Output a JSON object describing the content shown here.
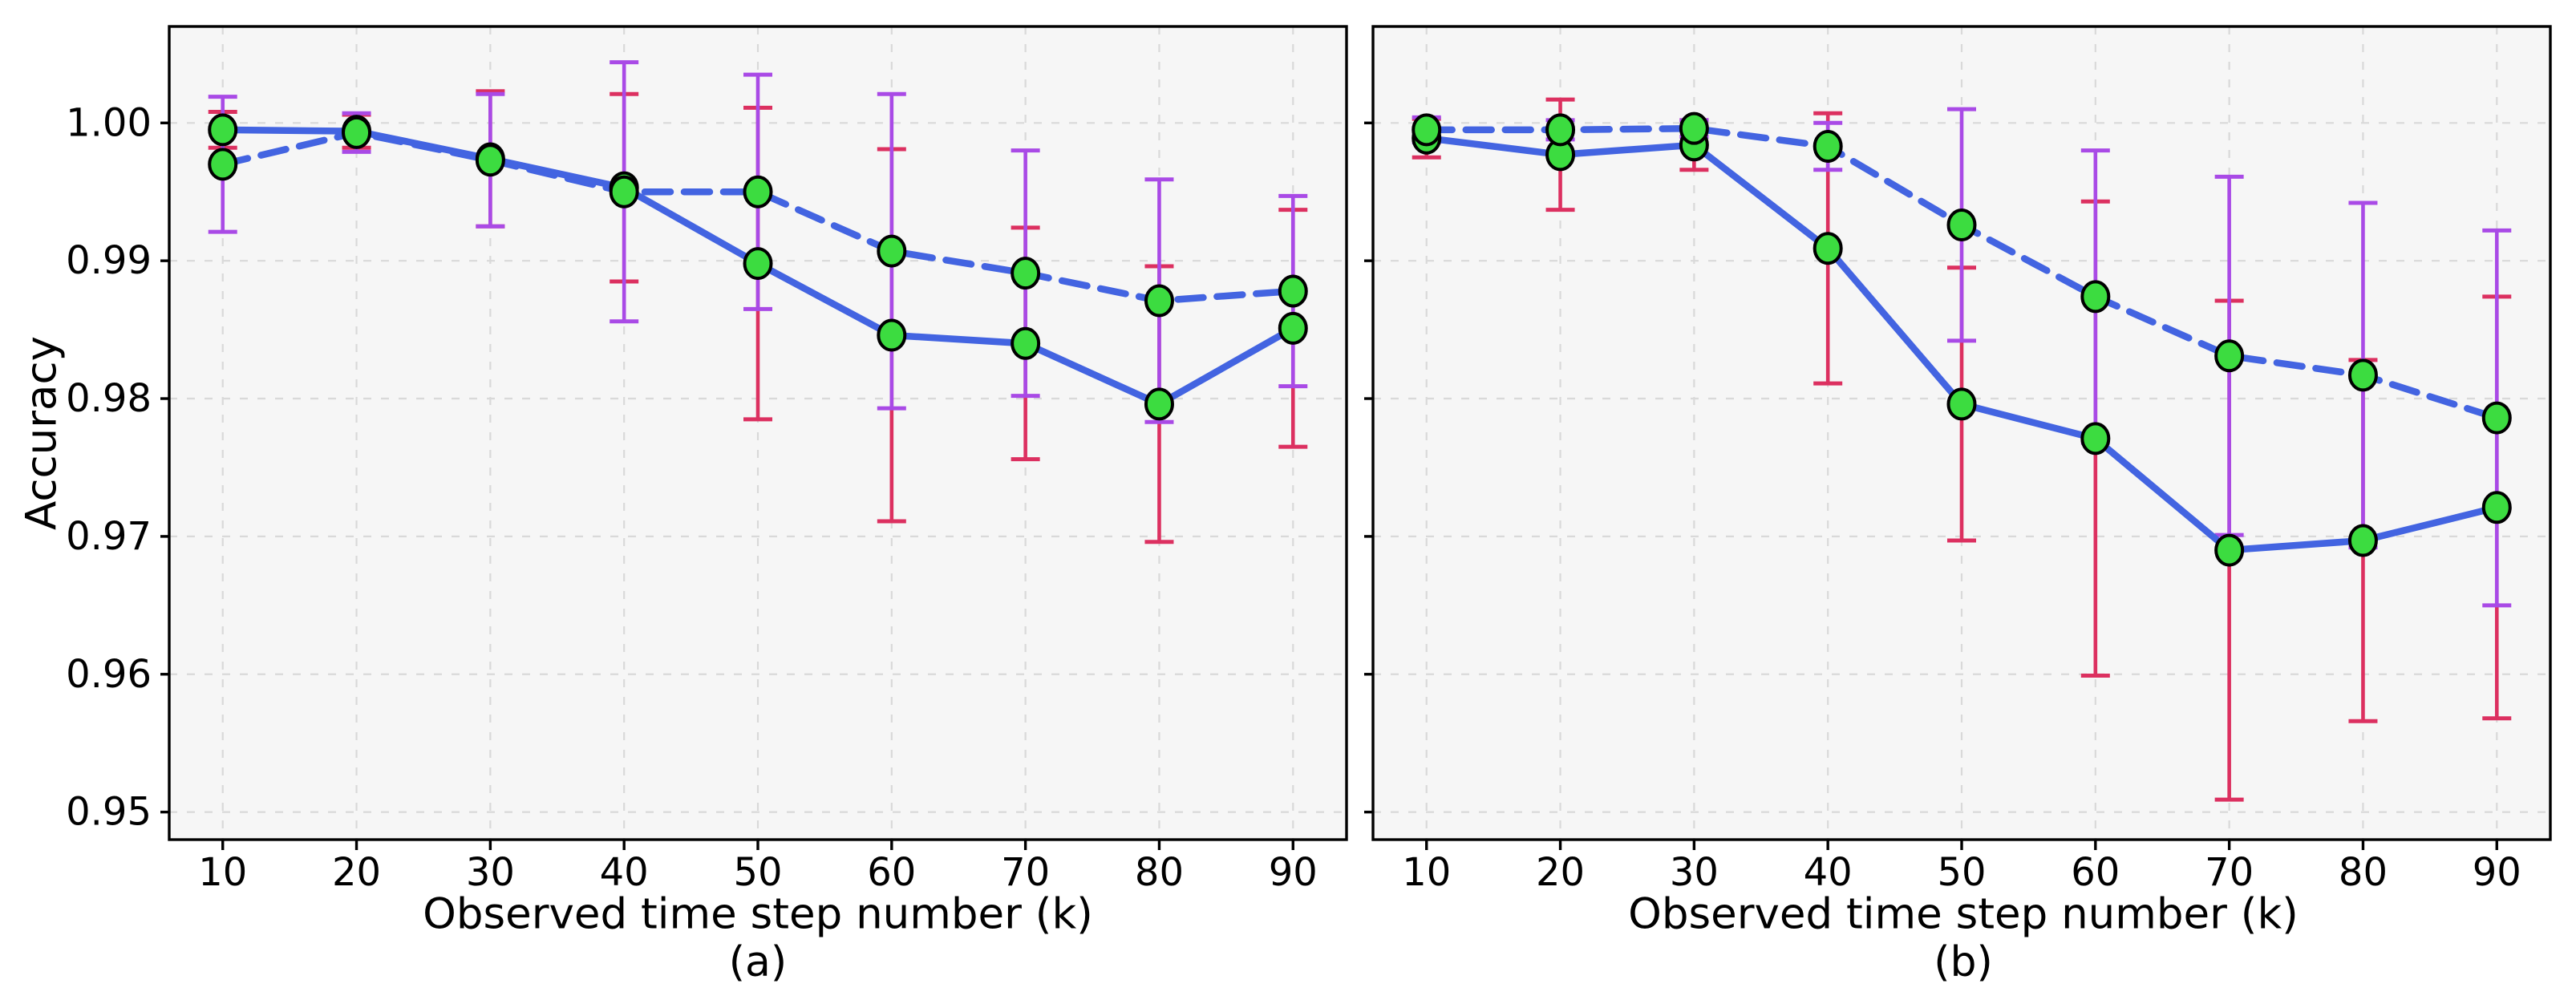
{
  "figure": {
    "background": "#ffffff",
    "axes_background": "#f6f6f6",
    "grid_color": "#d9d9d9",
    "spine_color": "#000000",
    "tick_label_color": "#000000",
    "line_color": "#4364e1",
    "marker_fill": "#3cdc40",
    "marker_edge": "#000000",
    "errorbar_colors": {
      "solid_series": "#dc3060",
      "dashed_series": "#a94ae6"
    },
    "ylabel": "Accuracy"
  },
  "chart_data": [
    {
      "type": "line",
      "panel_label": "(a)",
      "xlabel": "Observed time step number (k)",
      "ylabel": "Accuracy",
      "grid": true,
      "error_bars": true,
      "legend": "none",
      "xlim": [
        6,
        94
      ],
      "ylim": [
        0.948,
        1.007
      ],
      "x": [
        10,
        20,
        30,
        40,
        50,
        60,
        70,
        80,
        90
      ],
      "xtick_labels": [
        "10",
        "20",
        "30",
        "40",
        "50",
        "60",
        "70",
        "80",
        "90"
      ],
      "yticks": [
        0.95,
        0.96,
        0.97,
        0.98,
        0.99,
        1.0
      ],
      "ytick_labels": [
        "0.95",
        "0.96",
        "0.97",
        "0.98",
        "0.99",
        "1.00"
      ],
      "show_ytick_labels": true,
      "series": [
        {
          "name": "solid-line",
          "line_style": "solid",
          "marker": "circle",
          "err_color_key": "solid_series",
          "values": [
            0.9995,
            0.9994,
            0.9974,
            0.9953,
            0.9898,
            0.9846,
            0.984,
            0.9796,
            0.9851
          ],
          "yerr": [
            0.0013,
            0.0012,
            0.0049,
            0.0068,
            0.0113,
            0.0135,
            0.0084,
            0.01,
            0.0086
          ]
        },
        {
          "name": "dashed-line",
          "line_style": "dashed",
          "marker": "circle",
          "err_color_key": "dashed_series",
          "values": [
            0.997,
            0.9993,
            0.9973,
            0.995,
            0.995,
            0.9907,
            0.9891,
            0.9871,
            0.9878
          ],
          "yerr": [
            0.0049,
            0.0014,
            0.0048,
            0.0094,
            0.0085,
            0.0114,
            0.0089,
            0.0088,
            0.0069
          ]
        }
      ]
    },
    {
      "type": "line",
      "panel_label": "(b)",
      "xlabel": "Observed time step number (k)",
      "ylabel": "Accuracy",
      "grid": true,
      "error_bars": true,
      "legend": "none",
      "xlim": [
        6,
        94
      ],
      "ylim": [
        0.948,
        1.007
      ],
      "x": [
        10,
        20,
        30,
        40,
        50,
        60,
        70,
        80,
        90
      ],
      "xtick_labels": [
        "10",
        "20",
        "30",
        "40",
        "50",
        "60",
        "70",
        "80",
        "90"
      ],
      "yticks": [
        0.95,
        0.96,
        0.97,
        0.98,
        0.99,
        1.0
      ],
      "ytick_labels": [
        "0.95",
        "0.96",
        "0.97",
        "0.98",
        "0.99",
        "1.00"
      ],
      "show_ytick_labels": false,
      "series": [
        {
          "name": "solid-line",
          "line_style": "solid",
          "marker": "circle",
          "err_color_key": "solid_series",
          "values": [
            0.9989,
            0.9977,
            0.9984,
            0.9909,
            0.9796,
            0.9771,
            0.969,
            0.9697,
            0.9721
          ],
          "yerr": [
            0.0014,
            0.004,
            0.0018,
            0.0098,
            0.0099,
            0.0172,
            0.0181,
            0.0131,
            0.0153
          ]
        },
        {
          "name": "dashed-line",
          "line_style": "dashed",
          "marker": "circle",
          "err_color_key": "dashed_series",
          "values": [
            0.9995,
            0.9995,
            0.9996,
            0.9983,
            0.9926,
            0.9874,
            0.9831,
            0.9817,
            0.9786
          ],
          "yerr": [
            0.0009,
            0.0007,
            0.0006,
            0.0017,
            0.0084,
            0.0106,
            0.013,
            0.0125,
            0.0136
          ]
        }
      ]
    }
  ]
}
